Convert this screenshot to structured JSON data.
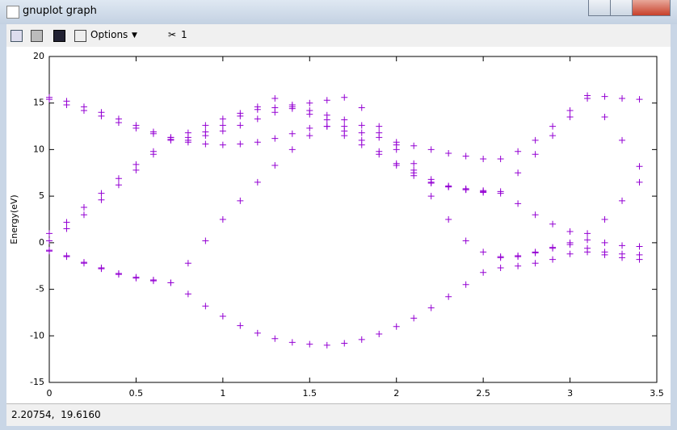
{
  "window": {
    "title": "gnuplot graph",
    "toolbar": {
      "options": "Options",
      "scissors_count": "1"
    },
    "status": "2.20754,  19.6160"
  },
  "chart_data": {
    "type": "scatter",
    "y_label": "Energy(eV)",
    "marker": "+",
    "x": [
      0,
      0.1,
      0.2,
      0.3,
      0.4,
      0.5,
      0.6,
      0.7,
      0.8,
      0.9,
      1.0,
      1.1,
      1.2,
      1.3,
      1.4,
      1.5,
      1.6,
      1.7,
      1.8,
      1.9,
      2.0,
      2.1,
      2.2,
      2.3,
      2.4,
      2.5,
      2.6,
      2.7,
      2.8,
      2.9,
      3.0,
      3.1,
      3.2,
      3.3,
      3.4
    ],
    "series": [
      {
        "color": "#9400d3",
        "values": [
          -0.8,
          -1.5,
          -2.2,
          -2.8,
          -3.4,
          -3.8,
          -4.1,
          -4.3,
          -5.5,
          -6.8,
          -7.9,
          -8.9,
          -9.7,
          -10.3,
          -10.7,
          -10.9,
          -11,
          -10.8,
          -10.4,
          -9.8,
          -9.0,
          -8.1,
          -7.0,
          -5.8,
          -4.5,
          -3.2,
          -2.7,
          -2.5,
          -2.2,
          -1.8,
          -1.2,
          -1.0,
          -1.3,
          -1.6,
          -1.8
        ]
      },
      {
        "color": "#9400d3",
        "values": [
          -0.9,
          -1.4,
          -2.1,
          -2.7,
          -3.3,
          -3.7,
          -4.0,
          -4.3,
          -2.2,
          0.2,
          2.5,
          4.5,
          6.5,
          8.3,
          10,
          11.5,
          12.5,
          11.5,
          10.5,
          9.5,
          8.3,
          7.2,
          6.4,
          6.0,
          5.7,
          5.5,
          -1.6,
          -1.5,
          -1.1,
          -0.6,
          -0.2,
          -0.6,
          -1.0,
          -1.2,
          -1.3
        ]
      },
      {
        "color": "#9400d3",
        "values": [
          0.2,
          1.5,
          3,
          4.6,
          6.2,
          7.8,
          9.5,
          11,
          11.8,
          12.6,
          13.3,
          13.9,
          14.3,
          14.5,
          14.4,
          13.8,
          13.2,
          12.5,
          11.8,
          11.3,
          10.8,
          10.4,
          10.0,
          9.6,
          9.3,
          9.0,
          9.0,
          9.8,
          11.0,
          12.5,
          14.2,
          15.8,
          15.7,
          15.5,
          15.4
        ]
      },
      {
        "color": "#9400d3",
        "values": [
          1.0,
          2.2,
          3.8,
          5.3,
          6.9,
          8.4,
          9.8,
          11.3,
          10.8,
          10.6,
          10.5,
          10.6,
          10.8,
          11.2,
          11.7,
          12.3,
          12.5,
          12.0,
          11.0,
          9.8,
          8.5,
          7.5,
          6.5,
          6.1,
          5.8,
          5.6,
          5.3,
          4.2,
          3.0,
          2.0,
          1.2,
          1.0,
          2.5,
          4.5,
          6.5
        ]
      },
      {
        "color": "#9400d3",
        "values": [
          15.6,
          15.2,
          14.6,
          14.0,
          13.3,
          12.6,
          11.9,
          11.3,
          11.3,
          11.9,
          12.6,
          13.6,
          14.6,
          15.5,
          14.8,
          14.2,
          13.7,
          13.2,
          12.6,
          11.8,
          10.5,
          8.5,
          6.8,
          6.0,
          5.7,
          5.4,
          5.5,
          7.5,
          9.5,
          11.5,
          13.5,
          15.5,
          13.5,
          11,
          8.2
        ]
      },
      {
        "color": "#9400d3",
        "values": [
          15.4,
          14.8,
          14.2,
          13.6,
          12.9,
          12.3,
          11.7,
          11.1,
          11,
          11.5,
          12,
          12.6,
          13.3,
          14.0,
          14.6,
          15.0,
          15.3,
          15.6,
          14.5,
          12.5,
          10,
          7.8,
          5.0,
          2.5,
          0.2,
          -1.0,
          -1.5,
          -1.4,
          -1.0,
          -0.5,
          0,
          0.3,
          0,
          -0.3,
          -0.4
        ]
      }
    ],
    "xlim": [
      0,
      3.5
    ],
    "xticks": [
      0,
      0.5,
      1,
      1.5,
      2,
      2.5,
      3,
      3.5
    ],
    "ylim": [
      -15,
      20
    ],
    "yticks": [
      -15,
      -10,
      -5,
      0,
      5,
      10,
      15,
      20
    ]
  }
}
